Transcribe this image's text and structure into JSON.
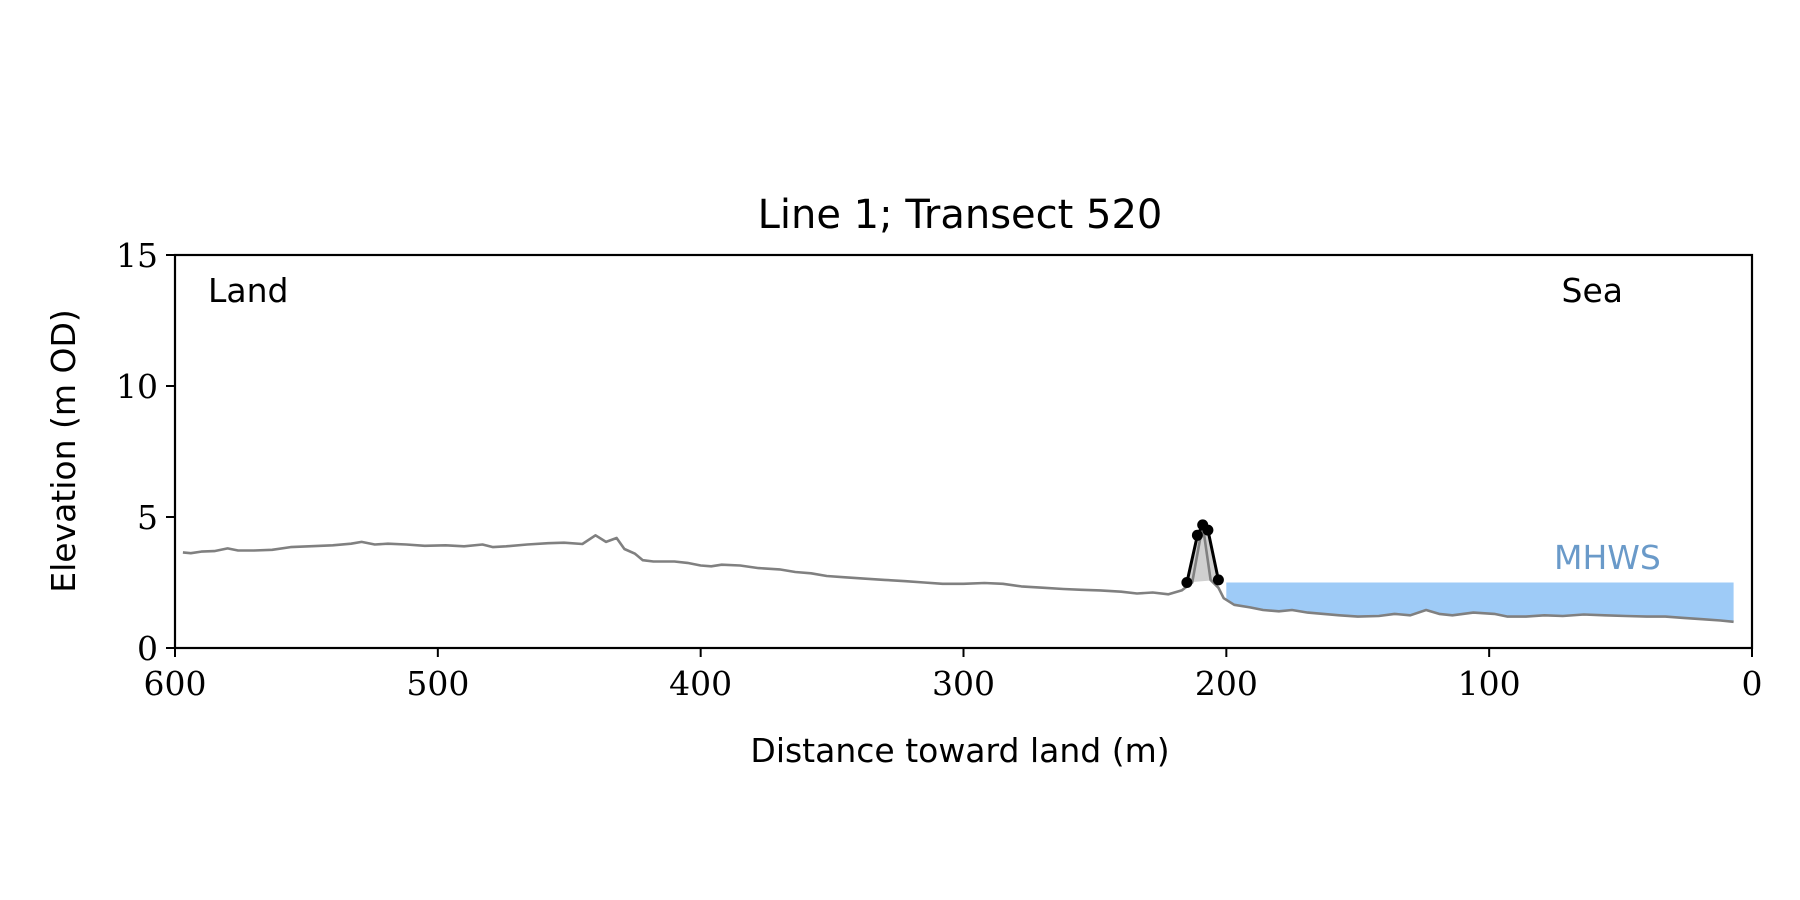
{
  "chart_data": {
    "type": "line",
    "title": "Line 1; Transect 520",
    "xlabel": "Distance toward land (m)",
    "ylabel": "Elevation (m OD)",
    "xlim": [
      600,
      0
    ],
    "ylim": [
      0,
      15
    ],
    "x_ticks": [
      600,
      500,
      400,
      300,
      200,
      100,
      0
    ],
    "y_ticks": [
      0,
      5,
      10,
      15
    ],
    "x_tick_labels": [
      "600",
      "500",
      "400",
      "300",
      "200",
      "100",
      "0"
    ],
    "y_tick_labels": [
      "0",
      "5",
      "10",
      "15"
    ],
    "grid": false,
    "annotations": {
      "land": "Land",
      "sea": "Sea",
      "mhws": "MHWS"
    },
    "mhws_level": 2.5,
    "mhws_x_range": [
      200,
      7
    ],
    "colors": {
      "profile": "#808080",
      "crest_outline": "#000000",
      "crest_fill": "#d0d0d0",
      "water": "#9ecbf7",
      "mhws_text": "#6a9ac9",
      "axes": "#000000"
    },
    "profile": [
      [
        597,
        3.65
      ],
      [
        594,
        3.62
      ],
      [
        590,
        3.68
      ],
      [
        585,
        3.7
      ],
      [
        580,
        3.8
      ],
      [
        576,
        3.72
      ],
      [
        570,
        3.72
      ],
      [
        563,
        3.75
      ],
      [
        556,
        3.85
      ],
      [
        549,
        3.88
      ],
      [
        540,
        3.92
      ],
      [
        533,
        3.98
      ],
      [
        529,
        4.05
      ],
      [
        524,
        3.95
      ],
      [
        519,
        3.98
      ],
      [
        512,
        3.95
      ],
      [
        505,
        3.9
      ],
      [
        497,
        3.92
      ],
      [
        490,
        3.88
      ],
      [
        483,
        3.95
      ],
      [
        479,
        3.85
      ],
      [
        474,
        3.88
      ],
      [
        466,
        3.95
      ],
      [
        458,
        4.0
      ],
      [
        452,
        4.02
      ],
      [
        445,
        3.97
      ],
      [
        440,
        4.3
      ],
      [
        436,
        4.05
      ],
      [
        432,
        4.2
      ],
      [
        429,
        3.78
      ],
      [
        425,
        3.6
      ],
      [
        422,
        3.35
      ],
      [
        418,
        3.3
      ],
      [
        410,
        3.3
      ],
      [
        405,
        3.25
      ],
      [
        400,
        3.15
      ],
      [
        396,
        3.12
      ],
      [
        392,
        3.18
      ],
      [
        385,
        3.15
      ],
      [
        378,
        3.05
      ],
      [
        370,
        3.0
      ],
      [
        364,
        2.9
      ],
      [
        358,
        2.85
      ],
      [
        352,
        2.75
      ],
      [
        345,
        2.7
      ],
      [
        338,
        2.65
      ],
      [
        330,
        2.6
      ],
      [
        322,
        2.55
      ],
      [
        315,
        2.5
      ],
      [
        308,
        2.45
      ],
      [
        300,
        2.45
      ],
      [
        292,
        2.48
      ],
      [
        285,
        2.45
      ],
      [
        278,
        2.35
      ],
      [
        270,
        2.3
      ],
      [
        262,
        2.25
      ],
      [
        255,
        2.22
      ],
      [
        248,
        2.2
      ],
      [
        240,
        2.15
      ],
      [
        234,
        2.08
      ],
      [
        228,
        2.12
      ],
      [
        222,
        2.05
      ],
      [
        217,
        2.2
      ],
      [
        213,
        2.5
      ],
      [
        209,
        4.7
      ],
      [
        206,
        2.6
      ],
      [
        203,
        2.3
      ],
      [
        201,
        1.9
      ],
      [
        197,
        1.65
      ],
      [
        191,
        1.55
      ],
      [
        186,
        1.45
      ],
      [
        180,
        1.4
      ],
      [
        175,
        1.45
      ],
      [
        169,
        1.35
      ],
      [
        163,
        1.3
      ],
      [
        157,
        1.25
      ],
      [
        150,
        1.2
      ],
      [
        142,
        1.22
      ],
      [
        136,
        1.3
      ],
      [
        130,
        1.25
      ],
      [
        124,
        1.45
      ],
      [
        119,
        1.3
      ],
      [
        114,
        1.25
      ],
      [
        106,
        1.35
      ],
      [
        98,
        1.3
      ],
      [
        93,
        1.2
      ],
      [
        86,
        1.2
      ],
      [
        79,
        1.25
      ],
      [
        72,
        1.22
      ],
      [
        64,
        1.28
      ],
      [
        56,
        1.25
      ],
      [
        48,
        1.22
      ],
      [
        40,
        1.2
      ],
      [
        33,
        1.2
      ],
      [
        26,
        1.15
      ],
      [
        19,
        1.1
      ],
      [
        12,
        1.05
      ],
      [
        7,
        1.0
      ]
    ],
    "crest_points": [
      [
        215,
        2.5
      ],
      [
        211,
        4.3
      ],
      [
        209,
        4.7
      ],
      [
        207,
        4.5
      ],
      [
        203,
        2.6
      ]
    ]
  }
}
